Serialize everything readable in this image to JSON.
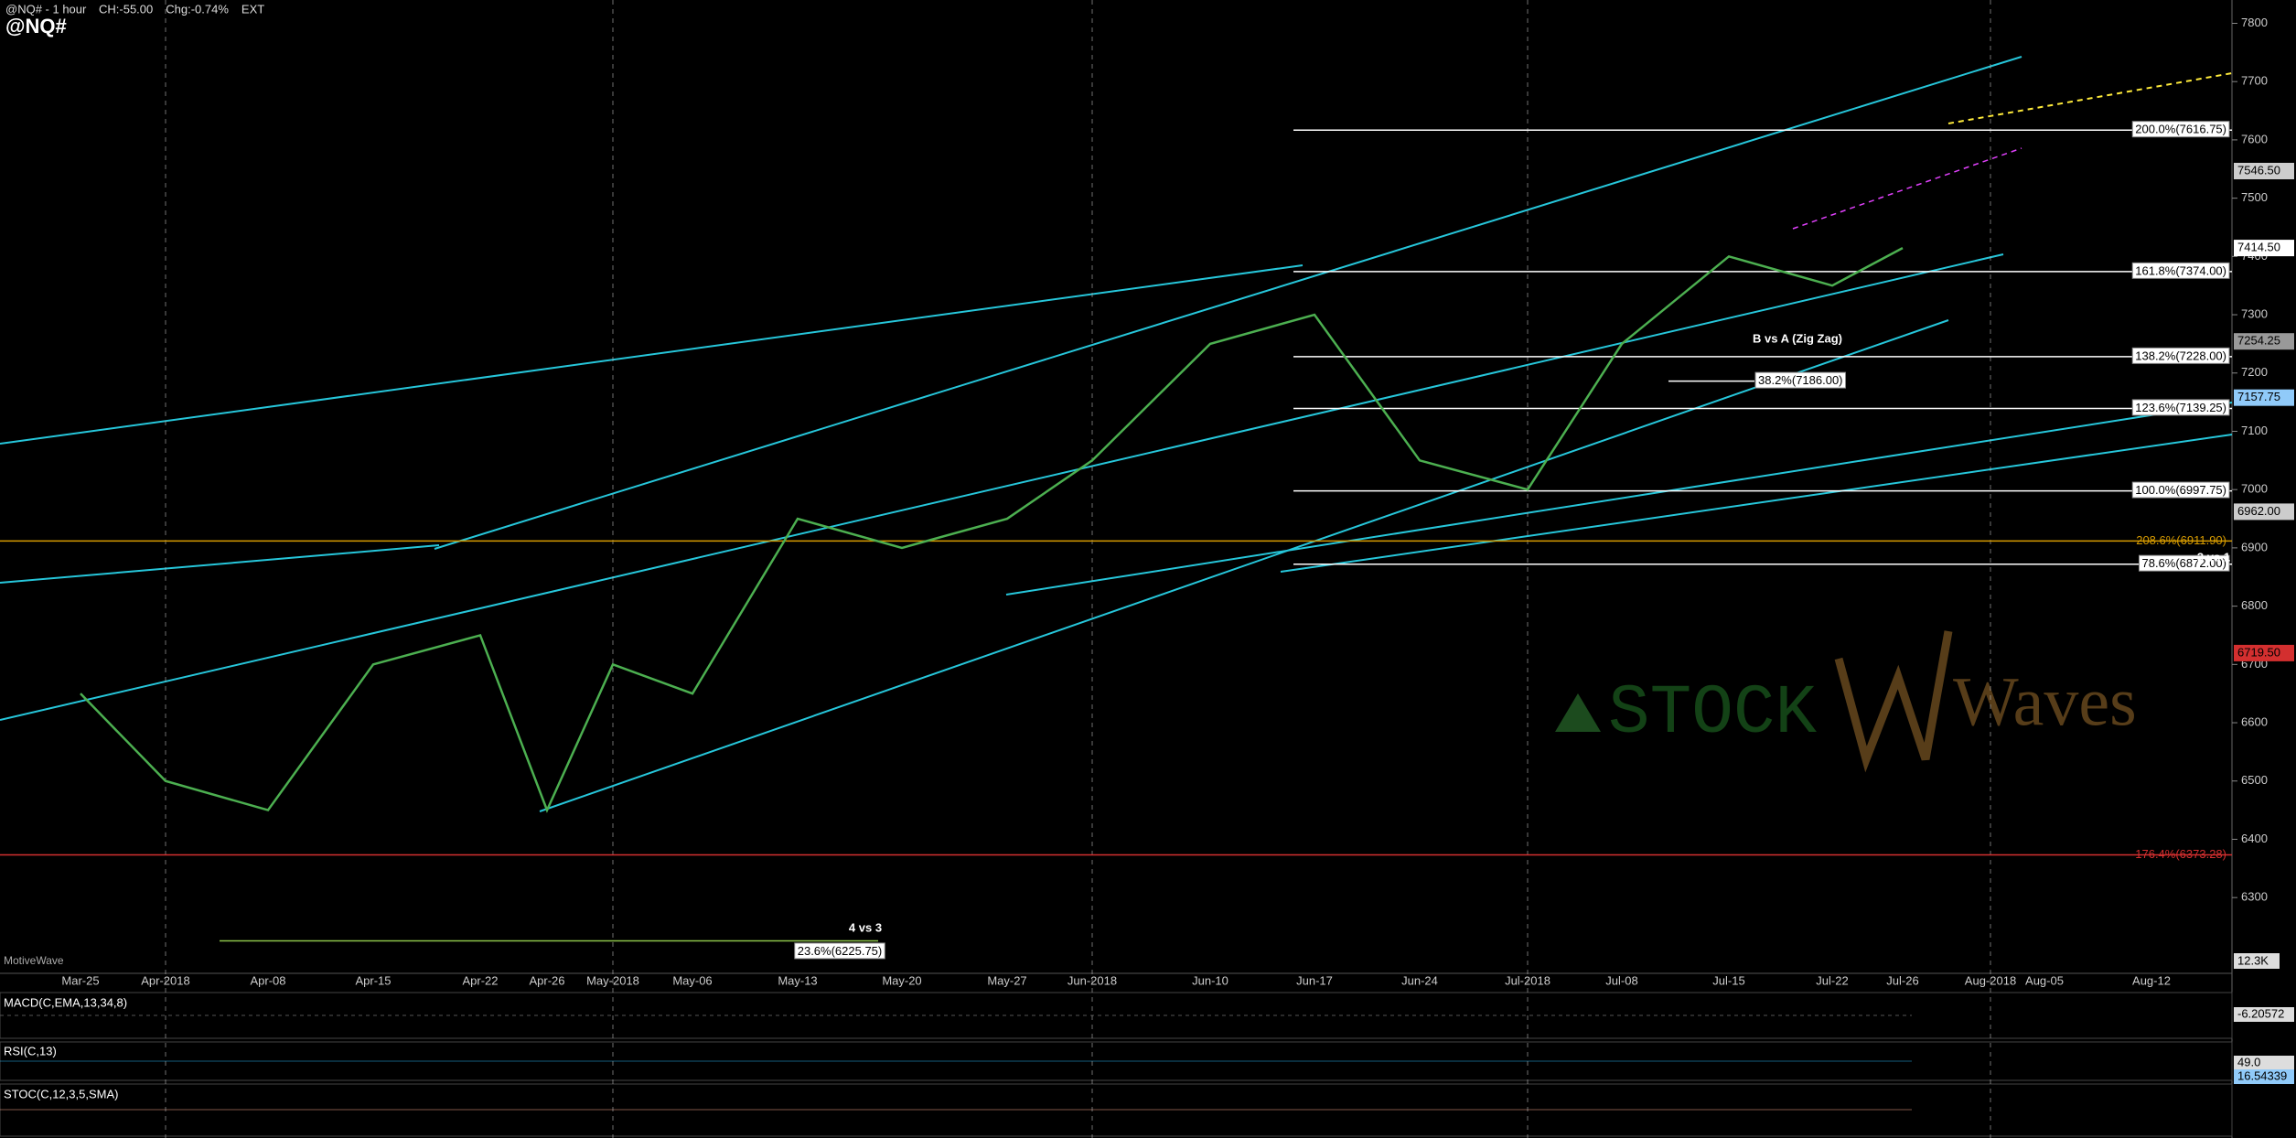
{
  "chart_data": {
    "type": "line",
    "title": "@NQ#",
    "subtitle": "@NQ# - 1 hour",
    "header_stats": [
      "CH:-55.00",
      "Chg:-0.74%",
      "EXT"
    ],
    "categories": [
      "Mar-25",
      "Apr-2018",
      "Apr-08",
      "Apr-15",
      "Apr-22",
      "Apr-26",
      "May-2018",
      "May-06",
      "May-13",
      "May-20",
      "May-27",
      "Jun-2018",
      "Jun-10",
      "Jun-17",
      "Jun-24",
      "Jul-2018",
      "Jul-08",
      "Jul-15",
      "Jul-22",
      "Jul-26",
      "Aug-2018",
      "Aug-05",
      "Aug-12"
    ],
    "values": [
      6650,
      6500,
      6450,
      6700,
      6750,
      6450,
      6700,
      6650,
      6950,
      6900,
      6950,
      7050,
      7250,
      7300,
      7050,
      7000,
      7250,
      7400,
      7350,
      7414.5,
      null,
      null,
      null
    ],
    "color": "#4caf50",
    "ylim": [
      6170,
      7840
    ],
    "yticks": [
      6300,
      6400,
      6500,
      6600,
      6700,
      6800,
      6900,
      7000,
      7100,
      7200,
      7300,
      7400,
      7500,
      7600,
      7700,
      7800
    ],
    "levels": [
      {
        "label": "200.0%(7616.75)",
        "value": 7616.75,
        "color": "#ffffff"
      },
      {
        "label": "161.8%(7374.00)",
        "value": 7374.0,
        "color": "#ffffff"
      },
      {
        "label": "138.2%(7228.00)",
        "value": 7228.0,
        "color": "#ffffff"
      },
      {
        "label": "123.6%(7139.25)",
        "value": 7139.25,
        "color": "#ffffff"
      },
      {
        "label": "100.0%(6997.75)",
        "value": 6997.75,
        "color": "#ffffff"
      },
      {
        "label": "78.6%(6872.00)",
        "value": 6872.0,
        "color": "#ffffff"
      },
      {
        "label": "38.2%(7186.00)",
        "value": 7186.0,
        "color": "#ffffff"
      },
      {
        "label": "208.6%(6911.90)",
        "value": 6911.9,
        "color": "#d79b00"
      },
      {
        "label": "176.4%(6373.28)",
        "value": 6373.28,
        "color": "#d32f2f"
      },
      {
        "label": "23.6%(6225.75)",
        "value": 6225.75,
        "color": "#8bc34a"
      }
    ],
    "price_tags": [
      {
        "value": 7546.5,
        "label": "7546.50",
        "color": "#cccccc"
      },
      {
        "value": 7414.5,
        "label": "7414.50",
        "color": "#ffffff"
      },
      {
        "value": 7254.25,
        "color": "#999999"
      },
      {
        "value": 7157.75,
        "color": "#90caf9"
      },
      {
        "value": 6962.0,
        "label": "6962.00",
        "color": "#cccccc"
      },
      {
        "value": 6719.5,
        "label": "6719.50",
        "color": "#d32f2f"
      }
    ],
    "notes": [
      "B vs A (Zig Zag)",
      "3 vs 1",
      "4 vs 3"
    ],
    "watermark": [
      "STOCK",
      "Waves"
    ],
    "source": "MotiveWave",
    "volume_tag": "12.3K",
    "indicators": [
      {
        "title": "MACD(C,EMA,13,34,8)",
        "tags": [
          "-6.20572"
        ]
      },
      {
        "title": "RSI(C,13)",
        "tags": [
          "49.0",
          "16.54339"
        ]
      },
      {
        "title": "STOC(C,12,3,5,SMA)",
        "tags": []
      }
    ]
  }
}
